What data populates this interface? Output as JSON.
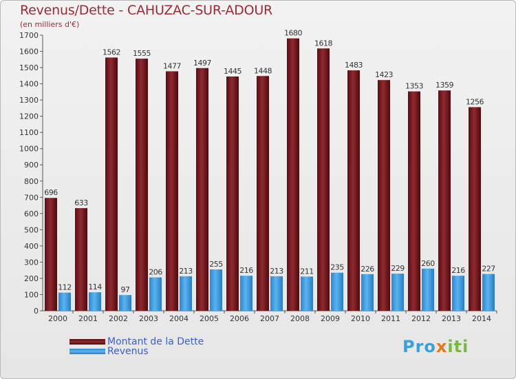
{
  "header": {
    "title": "Revenus/Dette - CAHUZAC-SUR-ADOUR",
    "subtitle": "(en milliers d'€)"
  },
  "chart_data": {
    "type": "bar",
    "title": "Revenus/Dette - CAHUZAC-SUR-ADOUR",
    "subtitle": "(en milliers d'€)",
    "xlabel": "",
    "ylabel": "",
    "ylim": [
      0,
      1700
    ],
    "yticks": [
      0,
      100,
      200,
      300,
      400,
      500,
      600,
      700,
      800,
      900,
      1000,
      1100,
      1200,
      1300,
      1400,
      1500,
      1600,
      1700
    ],
    "grid": false,
    "categories": [
      "2000",
      "2001",
      "2002",
      "2003",
      "2004",
      "2005",
      "2006",
      "2007",
      "2008",
      "2009",
      "2010",
      "2011",
      "2012",
      "2013",
      "2014"
    ],
    "series": [
      {
        "name": "Montant de la Dette",
        "color": "#7a1a1e",
        "values": [
          696,
          633,
          1562,
          1555,
          1477,
          1497,
          1445,
          1448,
          1680,
          1618,
          1483,
          1423,
          1353,
          1359,
          1256
        ]
      },
      {
        "name": "Revenus",
        "color": "#3a9ae0",
        "values": [
          112,
          114,
          97,
          206,
          213,
          255,
          216,
          213,
          211,
          235,
          226,
          229,
          260,
          216,
          227
        ]
      }
    ],
    "legend_position": "bottom-left"
  },
  "legend": {
    "items": [
      {
        "label": "Montant de la Dette",
        "color": "#7a1a1e"
      },
      {
        "label": "Revenus",
        "color": "#3a9ae0"
      }
    ]
  },
  "brand": {
    "p1": "Pro",
    "p2": "x",
    "p3": "iti"
  }
}
